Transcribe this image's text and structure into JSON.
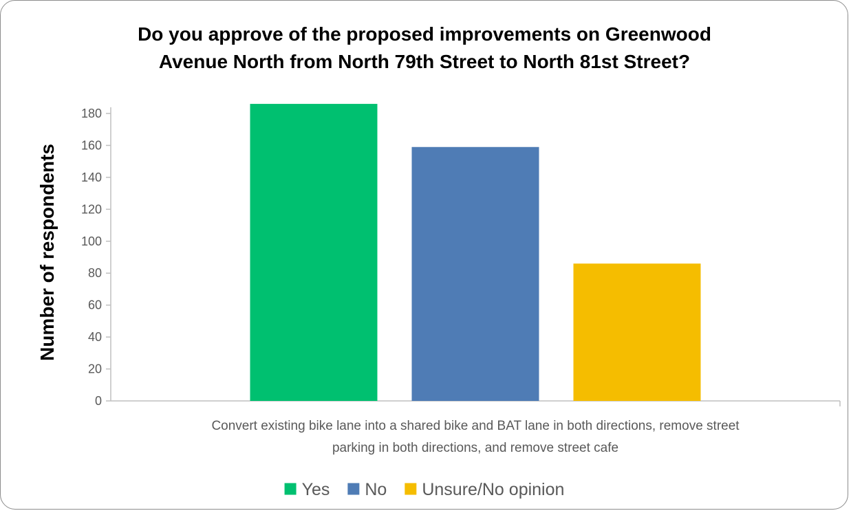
{
  "chart_data": {
    "type": "bar",
    "title_lines": [
      "Do you approve of the proposed improvements on Greenwood",
      "Avenue North from North 79th Street to North 81st Street?"
    ],
    "ylabel": "Number of respondents",
    "category_lines": [
      "Convert existing bike lane into a shared bike and BAT lane in both directions, remove street",
      "parking in both directions, and remove street cafe"
    ],
    "categories": [
      "Convert existing bike lane into a shared bike and BAT lane in both directions, remove street parking in both directions, and remove street cafe"
    ],
    "series": [
      {
        "name": "Yes",
        "color": "#00c070",
        "values": [
          186
        ]
      },
      {
        "name": "No",
        "color": "#4f7cb5",
        "values": [
          159
        ]
      },
      {
        "name": "Unsure/No opinion",
        "color": "#f5bd00",
        "values": [
          86
        ]
      }
    ],
    "ylim": [
      0,
      180
    ],
    "yticks": [
      0,
      20,
      40,
      60,
      80,
      100,
      120,
      140,
      160,
      180
    ],
    "grid": false,
    "legend_position": "bottom"
  }
}
